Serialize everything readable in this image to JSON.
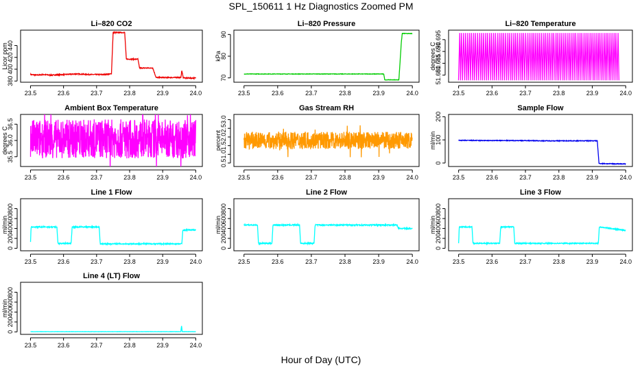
{
  "figure": {
    "title": "SPL_150611  1 Hz Diagnostics Zoomed PM",
    "xlabel": "Hour of Day (UTC)"
  },
  "chart_data": [
    {
      "type": "line",
      "title": "Li–820 CO2",
      "ylabel": "Licor ppm",
      "xlim": [
        23.47,
        24.02
      ],
      "ylim": [
        378,
        466
      ],
      "xticks": [
        23.5,
        23.6,
        23.7,
        23.8,
        23.9,
        24.0
      ],
      "xtick_labels": [
        "23.5",
        "23.6",
        "23.7",
        "23.8",
        "23.9",
        "24.0"
      ],
      "yticks": [
        380,
        400,
        420,
        440
      ],
      "ytick_labels": [
        "380",
        "400",
        "420",
        "440"
      ],
      "color": "#ee0000",
      "x": [
        23.5,
        23.52,
        23.54,
        23.56,
        23.6,
        23.64,
        23.68,
        23.72,
        23.745,
        23.75,
        23.755,
        23.785,
        23.79,
        23.8,
        23.825,
        23.83,
        23.86,
        23.87,
        23.88,
        23.9,
        23.955,
        23.958,
        23.962,
        23.97,
        24.0
      ],
      "y": [
        391,
        390,
        391,
        390,
        391,
        392,
        391,
        391,
        392,
        462,
        462,
        462,
        417,
        417,
        417,
        402,
        402,
        402,
        386,
        386,
        386,
        398,
        386,
        385,
        385
      ],
      "noise": 0.8
    },
    {
      "type": "line",
      "title": "Li–820 Pressure",
      "ylabel": "kPa",
      "xlim": [
        23.47,
        24.02
      ],
      "ylim": [
        68,
        92
      ],
      "xticks": [
        23.5,
        23.6,
        23.7,
        23.8,
        23.9,
        24.0
      ],
      "xtick_labels": [
        "23.5",
        "23.6",
        "23.7",
        "23.8",
        "23.9",
        "24.0"
      ],
      "yticks": [
        70,
        80,
        90
      ],
      "ytick_labels": [
        "70",
        "80",
        "90"
      ],
      "color": "#00cc00",
      "x": [
        23.5,
        23.6,
        23.7,
        23.8,
        23.9,
        23.915,
        23.918,
        23.96,
        23.963,
        23.967,
        23.97,
        24.0
      ],
      "y": [
        71.8,
        71.8,
        71.8,
        71.8,
        71.8,
        71.8,
        69.1,
        69.1,
        76,
        86,
        90.5,
        90.4
      ],
      "noise": 0.1
    },
    {
      "type": "line",
      "title": "Li–820 Temperature",
      "ylabel": "degrees C",
      "xlim": [
        23.47,
        24.02
      ],
      "ylim": [
        51.677,
        51.699
      ],
      "xticks": [
        23.5,
        23.6,
        23.7,
        23.8,
        23.9,
        24.0
      ],
      "xtick_labels": [
        "23.5",
        "23.6",
        "23.7",
        "23.8",
        "23.9",
        "24.0"
      ],
      "yticks": [
        51.68,
        51.685,
        51.69,
        51.695
      ],
      "ytick_labels": [
        "51.680",
        "51.685",
        "51.690",
        "51.695"
      ],
      "color": "#ff00ff",
      "levels": [
        51.6778,
        51.6978
      ],
      "x_range": [
        23.5,
        23.98
      ],
      "noise": 0
    },
    {
      "type": "line",
      "title": "Ambient Box Temperature",
      "ylabel": "degrees C",
      "xlim": [
        23.47,
        24.02
      ],
      "ylim": [
        35.2,
        36.8
      ],
      "xticks": [
        23.5,
        23.6,
        23.7,
        23.8,
        23.9,
        24.0
      ],
      "xtick_labels": [
        "23.5",
        "23.6",
        "23.7",
        "23.8",
        "23.9",
        "24.0"
      ],
      "yticks": [
        35.5,
        36.0,
        36.5
      ],
      "ytick_labels": [
        "35.5",
        "36.0",
        "36.5"
      ],
      "color": "#ff00ff",
      "band": [
        35.45,
        36.65
      ],
      "x_range": [
        23.5,
        24.0
      ],
      "noise": 0
    },
    {
      "type": "line",
      "title": "Gas Stream RH",
      "ylabel": "percent",
      "xlim": [
        23.47,
        24.02
      ],
      "ylim": [
        0.3,
        3.3
      ],
      "xticks": [
        23.5,
        23.6,
        23.7,
        23.8,
        23.9,
        24.0
      ],
      "xtick_labels": [
        "23.5",
        "23.6",
        "23.7",
        "23.8",
        "23.9",
        "24.0"
      ],
      "yticks": [
        0.5,
        1.0,
        1.5,
        2.0,
        2.5,
        3.0
      ],
      "ytick_labels": [
        "0.5",
        "1.0",
        "1.5",
        "2.0",
        "2.5",
        "3.0"
      ],
      "color": "#ff9900",
      "band": [
        1.3,
        2.3
      ],
      "x_range": [
        23.5,
        24.0
      ],
      "noise": 0
    },
    {
      "type": "line",
      "title": "Sample Flow",
      "ylabel": "ml/min",
      "xlim": [
        23.47,
        24.02
      ],
      "ylim": [
        -15,
        210
      ],
      "xticks": [
        23.5,
        23.6,
        23.7,
        23.8,
        23.9,
        24.0
      ],
      "xtick_labels": [
        "23.5",
        "23.6",
        "23.7",
        "23.8",
        "23.9",
        "24.0"
      ],
      "yticks": [
        0,
        100,
        200
      ],
      "ytick_labels": [
        "0",
        "100",
        "200"
      ],
      "color": "#0000ee",
      "x": [
        23.5,
        23.6,
        23.7,
        23.75,
        23.8,
        23.85,
        23.9,
        23.915,
        23.92,
        23.95,
        24.0
      ],
      "y": [
        98,
        97,
        97,
        96,
        96,
        96,
        96,
        96,
        -2,
        -3,
        -4
      ],
      "noise": 1.5
    },
    {
      "type": "line",
      "title": "Line 1 Flow",
      "ylabel": "ml/min",
      "xlim": [
        23.47,
        24.02
      ],
      "ylim": [
        -50,
        1000
      ],
      "xticks": [
        23.5,
        23.6,
        23.7,
        23.8,
        23.9,
        24.0
      ],
      "xtick_labels": [
        "23.5",
        "23.6",
        "23.7",
        "23.8",
        "23.9",
        "24.0"
      ],
      "yticks": [
        0,
        200,
        400,
        600,
        800
      ],
      "ytick_labels": [
        "0",
        "200",
        "400",
        "600",
        "800"
      ],
      "color": "#00ffff",
      "x": [
        23.5,
        23.502,
        23.58,
        23.583,
        23.623,
        23.626,
        23.708,
        23.711,
        23.958,
        23.961,
        24.0
      ],
      "y": [
        120,
        430,
        430,
        100,
        100,
        430,
        430,
        90,
        90,
        370,
        370
      ],
      "noise": 12
    },
    {
      "type": "line",
      "title": "Line 2 Flow",
      "ylabel": "ml/min",
      "xlim": [
        23.47,
        24.02
      ],
      "ylim": [
        -50,
        1000
      ],
      "xticks": [
        23.5,
        23.6,
        23.7,
        23.8,
        23.9,
        24.0
      ],
      "xtick_labels": [
        "23.5",
        "23.6",
        "23.7",
        "23.8",
        "23.9",
        "24.0"
      ],
      "yticks": [
        0,
        200,
        400,
        600,
        800
      ],
      "ytick_labels": [
        "0",
        "200",
        "400",
        "600",
        "800"
      ],
      "color": "#00ffff",
      "x": [
        23.5,
        23.54,
        23.543,
        23.583,
        23.586,
        23.665,
        23.668,
        23.708,
        23.711,
        23.955,
        23.958,
        24.0
      ],
      "y": [
        470,
        470,
        100,
        100,
        470,
        470,
        100,
        100,
        470,
        470,
        400,
        400
      ],
      "noise": 12
    },
    {
      "type": "line",
      "title": "Line 3 Flow",
      "ylabel": "ml/min",
      "xlim": [
        23.47,
        24.02
      ],
      "ylim": [
        -50,
        1000
      ],
      "xticks": [
        23.5,
        23.6,
        23.7,
        23.8,
        23.9,
        24.0
      ],
      "xtick_labels": [
        "23.5",
        "23.6",
        "23.7",
        "23.8",
        "23.9",
        "24.0"
      ],
      "yticks": [
        0,
        200,
        400,
        600,
        800
      ],
      "ytick_labels": [
        "0",
        "200",
        "400",
        "600",
        "800"
      ],
      "color": "#00ffff",
      "x": [
        23.5,
        23.502,
        23.54,
        23.543,
        23.623,
        23.626,
        23.665,
        23.668,
        23.918,
        23.921,
        24.0
      ],
      "y": [
        100,
        430,
        430,
        100,
        100,
        430,
        430,
        100,
        100,
        430,
        360
      ],
      "noise": 10
    },
    {
      "type": "line",
      "title": "Line 4 (LT) Flow",
      "ylabel": "ml/min",
      "xlim": [
        23.47,
        24.02
      ],
      "ylim": [
        -50,
        1000
      ],
      "xticks": [
        23.5,
        23.6,
        23.7,
        23.8,
        23.9,
        24.0
      ],
      "xtick_labels": [
        "23.5",
        "23.6",
        "23.7",
        "23.8",
        "23.9",
        "24.0"
      ],
      "yticks": [
        0,
        200,
        400,
        600,
        800
      ],
      "ytick_labels": [
        "0",
        "200",
        "400",
        "600",
        "800"
      ],
      "color": "#00ffff",
      "x": [
        23.5,
        23.6,
        23.7,
        23.8,
        23.9,
        23.955,
        23.957,
        23.959,
        23.961,
        24.0
      ],
      "y": [
        5,
        5,
        5,
        5,
        5,
        5,
        130,
        5,
        5,
        5
      ],
      "noise": 2
    }
  ]
}
